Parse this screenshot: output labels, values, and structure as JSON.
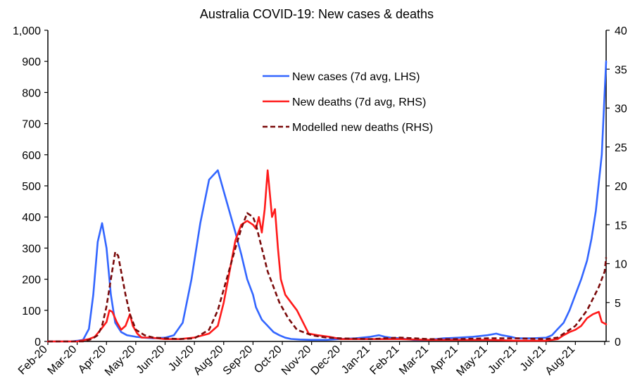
{
  "chart_data": {
    "type": "line",
    "title": "Australia COVID-19: New cases & deaths",
    "x_tick_labels": [
      "Feb-20",
      "Mar-20",
      "Apr-20",
      "May-20",
      "Jun-20",
      "Jul-20",
      "Aug-20",
      "Sep-20",
      "Oct-20",
      "Nov-20",
      "Dec-20",
      "Jan-21",
      "Feb-21",
      "Mar-21",
      "Apr-21",
      "May-21",
      "Jun-21",
      "Jul-21",
      "Aug-21"
    ],
    "y_left": {
      "min": 0,
      "max": 1000,
      "ticks": [
        "0",
        "100",
        "200",
        "300",
        "400",
        "500",
        "600",
        "700",
        "800",
        "900",
        "1,000"
      ]
    },
    "y_right": {
      "min": 0,
      "max": 40,
      "ticks": [
        "0",
        "5",
        "10",
        "15",
        "20",
        "25",
        "30",
        "35",
        "40"
      ]
    },
    "legend_position": "top-center",
    "grid": false,
    "series": [
      {
        "name": "New cases (7d avg, LHS)",
        "axis": "left",
        "color": "#3366ff",
        "style": "solid",
        "x": [
          0,
          0.8,
          1.0,
          1.2,
          1.4,
          1.55,
          1.7,
          1.85,
          2.0,
          2.15,
          2.3,
          2.5,
          2.7,
          3.0,
          3.3,
          3.6,
          4.0,
          4.3,
          4.6,
          4.9,
          5.2,
          5.5,
          5.8,
          6.1,
          6.4,
          6.6,
          6.8,
          7.0,
          7.1,
          7.2,
          7.3,
          7.5,
          7.7,
          7.9,
          8.1,
          8.3,
          8.6,
          9.0,
          9.5,
          10.0,
          10.5,
          11.0,
          11.3,
          11.5,
          11.7,
          12.0,
          12.5,
          13.0,
          13.5,
          14.0,
          14.5,
          15.0,
          15.3,
          15.5,
          15.8,
          16.0,
          16.5,
          17.0,
          17.2,
          17.4,
          17.6,
          17.8,
          18.0,
          18.2,
          18.4,
          18.55,
          18.7,
          18.9,
          19.0,
          19.05
        ],
        "y": [
          0,
          0,
          2,
          5,
          40,
          150,
          320,
          380,
          300,
          150,
          60,
          30,
          20,
          15,
          12,
          10,
          12,
          20,
          60,
          200,
          380,
          520,
          550,
          450,
          350,
          280,
          200,
          150,
          110,
          90,
          70,
          50,
          30,
          20,
          12,
          8,
          6,
          5,
          5,
          8,
          10,
          15,
          20,
          15,
          12,
          10,
          5,
          5,
          10,
          12,
          15,
          20,
          25,
          20,
          15,
          10,
          10,
          12,
          20,
          40,
          60,
          100,
          150,
          200,
          260,
          330,
          420,
          600,
          800,
          900
        ]
      },
      {
        "name": "New deaths (7d avg, RHS)",
        "axis": "right",
        "color": "#ff1a1a",
        "style": "solid",
        "x": [
          0,
          1.0,
          1.4,
          1.6,
          1.8,
          2.0,
          2.1,
          2.2,
          2.35,
          2.5,
          2.65,
          2.8,
          2.9,
          3.05,
          3.2,
          3.5,
          4.0,
          4.5,
          5.0,
          5.5,
          5.8,
          6.0,
          6.2,
          6.4,
          6.6,
          6.8,
          7.0,
          7.1,
          7.2,
          7.3,
          7.4,
          7.5,
          7.55,
          7.65,
          7.75,
          7.85,
          7.95,
          8.1,
          8.3,
          8.5,
          8.7,
          8.9,
          9.2,
          9.6,
          10.0,
          11.0,
          12.0,
          13.0,
          14.0,
          15.0,
          16.0,
          17.0,
          17.4,
          17.6,
          17.8,
          18.0,
          18.2,
          18.4,
          18.6,
          18.8,
          18.9,
          19.05
        ],
        "y": [
          0,
          0,
          0.3,
          0.6,
          1.5,
          2.5,
          4.0,
          3.8,
          2.5,
          1.5,
          2.0,
          3.5,
          2.0,
          1.0,
          0.5,
          0.5,
          0.3,
          0.3,
          0.5,
          1.0,
          2.0,
          5.0,
          9.0,
          13.0,
          15.0,
          15.5,
          15.0,
          14.5,
          16.0,
          14.0,
          17.0,
          22.0,
          20.0,
          16.0,
          17.0,
          12.0,
          8.0,
          6.0,
          5.0,
          4.0,
          2.5,
          1.0,
          0.8,
          0.6,
          0.3,
          0.3,
          0.3,
          0.2,
          0.2,
          0.2,
          0.1,
          0.1,
          0.3,
          0.8,
          1.2,
          1.5,
          2.0,
          3.0,
          3.5,
          3.8,
          2.5,
          2.2
        ]
      },
      {
        "name": "Modelled new deaths (RHS)",
        "axis": "right",
        "color": "#7a0a0a",
        "style": "dashed",
        "x": [
          0,
          1.2,
          1.5,
          1.7,
          1.85,
          2.0,
          2.15,
          2.3,
          2.4,
          2.5,
          2.65,
          2.8,
          3.0,
          3.3,
          3.6,
          4.0,
          4.5,
          5.0,
          5.5,
          5.8,
          6.1,
          6.4,
          6.6,
          6.8,
          7.0,
          7.1,
          7.3,
          7.5,
          7.7,
          7.9,
          8.2,
          8.5,
          9.0,
          9.5,
          10.0,
          11.0,
          11.5,
          12.0,
          13.0,
          14.0,
          15.0,
          16.0,
          17.0,
          17.4,
          17.6,
          17.8,
          18.0,
          18.2,
          18.4,
          18.6,
          18.8,
          19.0,
          19.05
        ],
        "y": [
          0,
          0,
          0.3,
          0.8,
          2.0,
          4.5,
          8.0,
          11.5,
          11.0,
          9.0,
          6.0,
          3.5,
          1.5,
          0.8,
          0.5,
          0.4,
          0.3,
          0.4,
          1.5,
          4.0,
          8.0,
          12.0,
          14.5,
          16.5,
          16.0,
          15.0,
          12.0,
          9.0,
          7.0,
          5.0,
          3.0,
          1.5,
          0.8,
          0.5,
          0.4,
          0.3,
          0.4,
          0.5,
          0.3,
          0.3,
          0.4,
          0.4,
          0.3,
          0.5,
          1.0,
          1.5,
          2.0,
          3.0,
          4.0,
          5.5,
          7.0,
          9.0,
          10.8
        ]
      }
    ]
  }
}
